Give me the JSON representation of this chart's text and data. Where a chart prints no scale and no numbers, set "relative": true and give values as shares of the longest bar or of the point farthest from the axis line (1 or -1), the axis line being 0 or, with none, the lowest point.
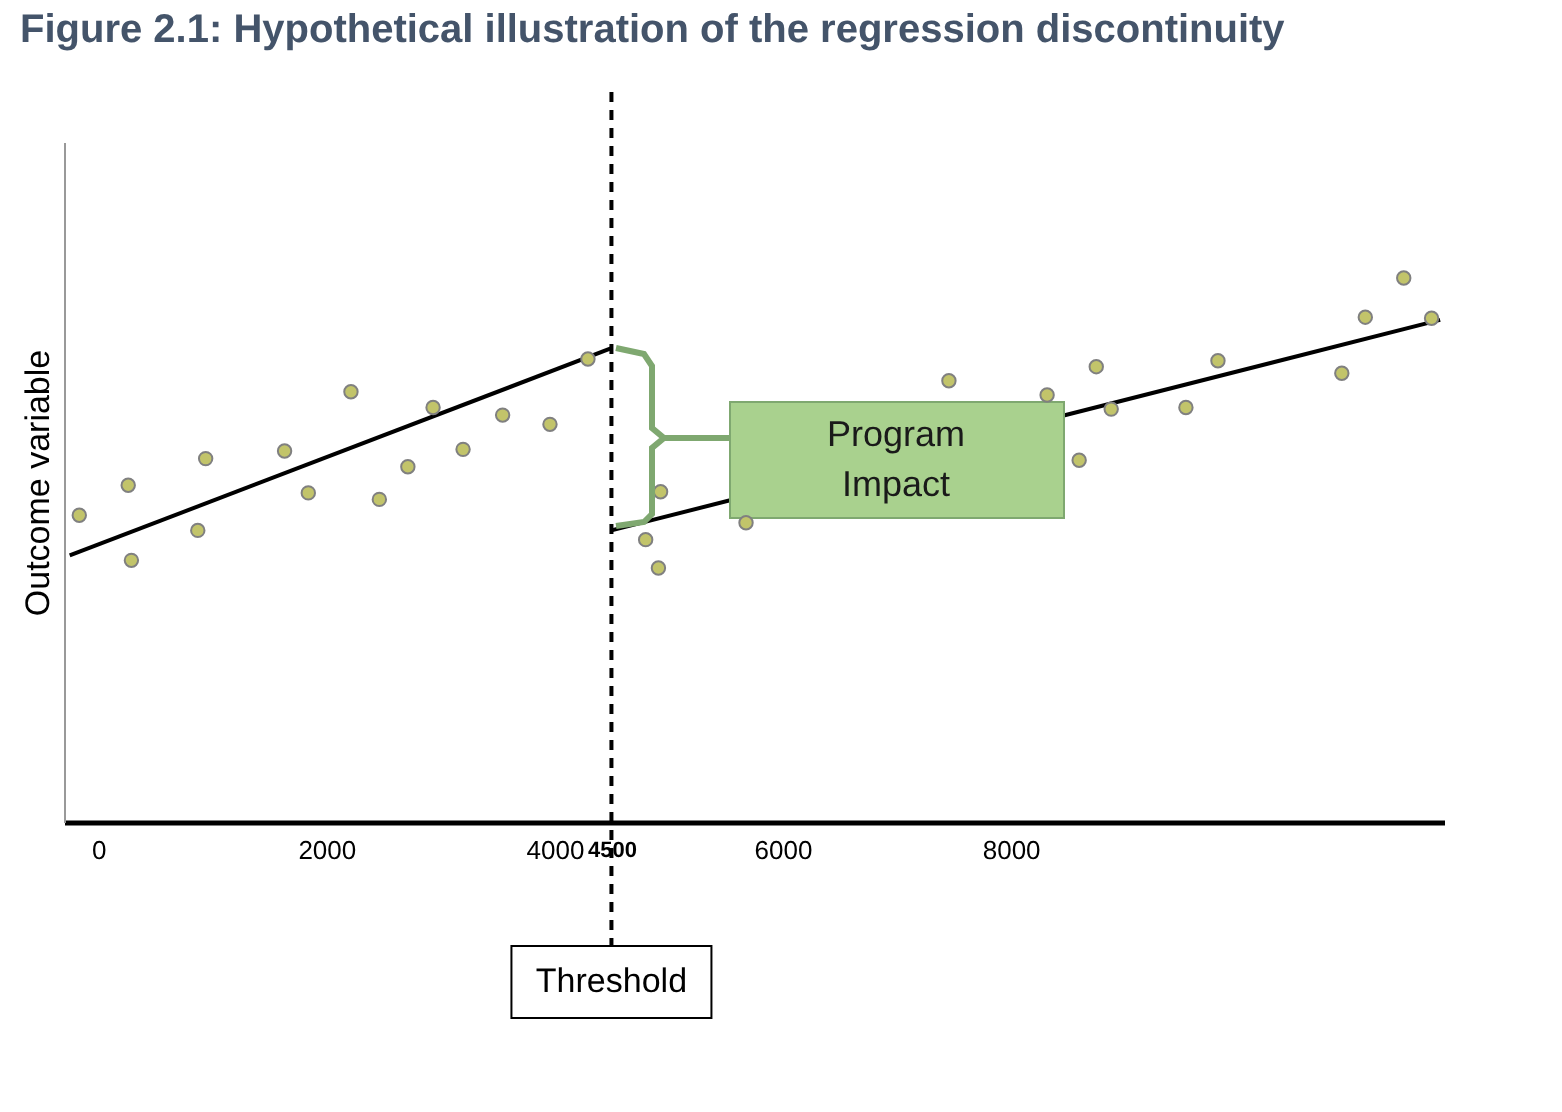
{
  "chart_data": {
    "type": "scatter",
    "title": "Figure 2.1: Hypothetical illustration of the regression discontinuity",
    "ylabel": "Outcome variable",
    "relative": true,
    "xlim": [
      -300,
      11800
    ],
    "xticks": [
      0,
      2000,
      4000,
      4500,
      6000,
      8000
    ],
    "grid": false,
    "legend": false,
    "marker": "circle",
    "tick_labels": "x",
    "series": [
      {
        "type": "scatter",
        "color": "#c2c46a",
        "x": [
          -166,
          263,
          291,
          873,
          942,
          1634,
          1842,
          2216,
          2465,
          2715,
          2936,
          3199,
          3546,
          3961,
          4294,
          4800,
          4912,
          4931,
          5680,
          7459,
          8320,
          8601,
          8751,
          8882,
          9537,
          9818,
          10904,
          11110,
          11447,
          11691
        ],
        "values": [
          0.564,
          0.619,
          0.481,
          0.536,
          0.668,
          0.682,
          0.605,
          0.791,
          0.593,
          0.653,
          0.762,
          0.685,
          0.748,
          0.731,
          0.851,
          0.519,
          0.467,
          0.607,
          0.55,
          0.811,
          0.785,
          0.665,
          0.837,
          0.759,
          0.762,
          0.848,
          0.825,
          0.928,
          1,
          0.926
        ]
      },
      {
        "type": "line",
        "marker": "none",
        "color": "#000000",
        "line_style": "solid",
        "x": [
          -250,
          4500
        ],
        "values": [
          0.49,
          0.871
        ]
      },
      {
        "type": "line",
        "marker": "none",
        "color": "#000000",
        "line_style": "solid",
        "x": [
          4500,
          11766
        ],
        "values": [
          0.536,
          0.923
        ]
      }
    ],
    "ref_lines": [
      {
        "axis": "x",
        "value": 4500,
        "label": "Threshold",
        "color": "#000000",
        "line_style": "dashed"
      }
    ],
    "annotations": [
      "Program Impact"
    ]
  }
}
